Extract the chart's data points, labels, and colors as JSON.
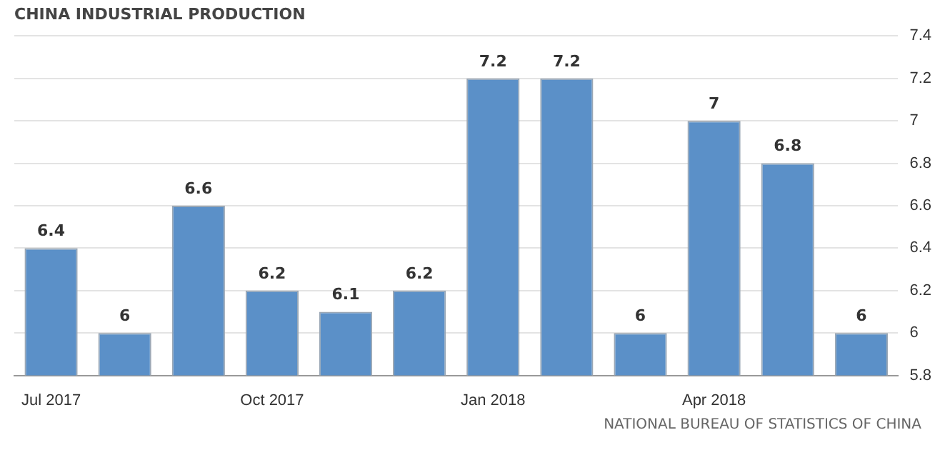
{
  "chart_data": {
    "type": "bar",
    "title": "CHINA INDUSTRIAL PRODUCTION",
    "categories": [
      "Jul 2017",
      null,
      null,
      "Oct 2017",
      null,
      null,
      "Jan 2018",
      null,
      null,
      "Apr 2018",
      null,
      null
    ],
    "values": [
      6.4,
      6,
      6.6,
      6.2,
      6.1,
      6.2,
      7.2,
      7.2,
      6,
      7,
      6.8,
      6
    ],
    "color": "#5b90c8",
    "ylim": [
      5.8,
      7.4
    ],
    "yticks": [
      5.8,
      6,
      6.2,
      6.4,
      6.6,
      6.8,
      7,
      7.2,
      7.4
    ],
    "grid": "y",
    "data_labels": true,
    "legend": false,
    "annotations": [
      "NATIONAL BUREAU OF STATISTICS OF CHINA"
    ]
  }
}
